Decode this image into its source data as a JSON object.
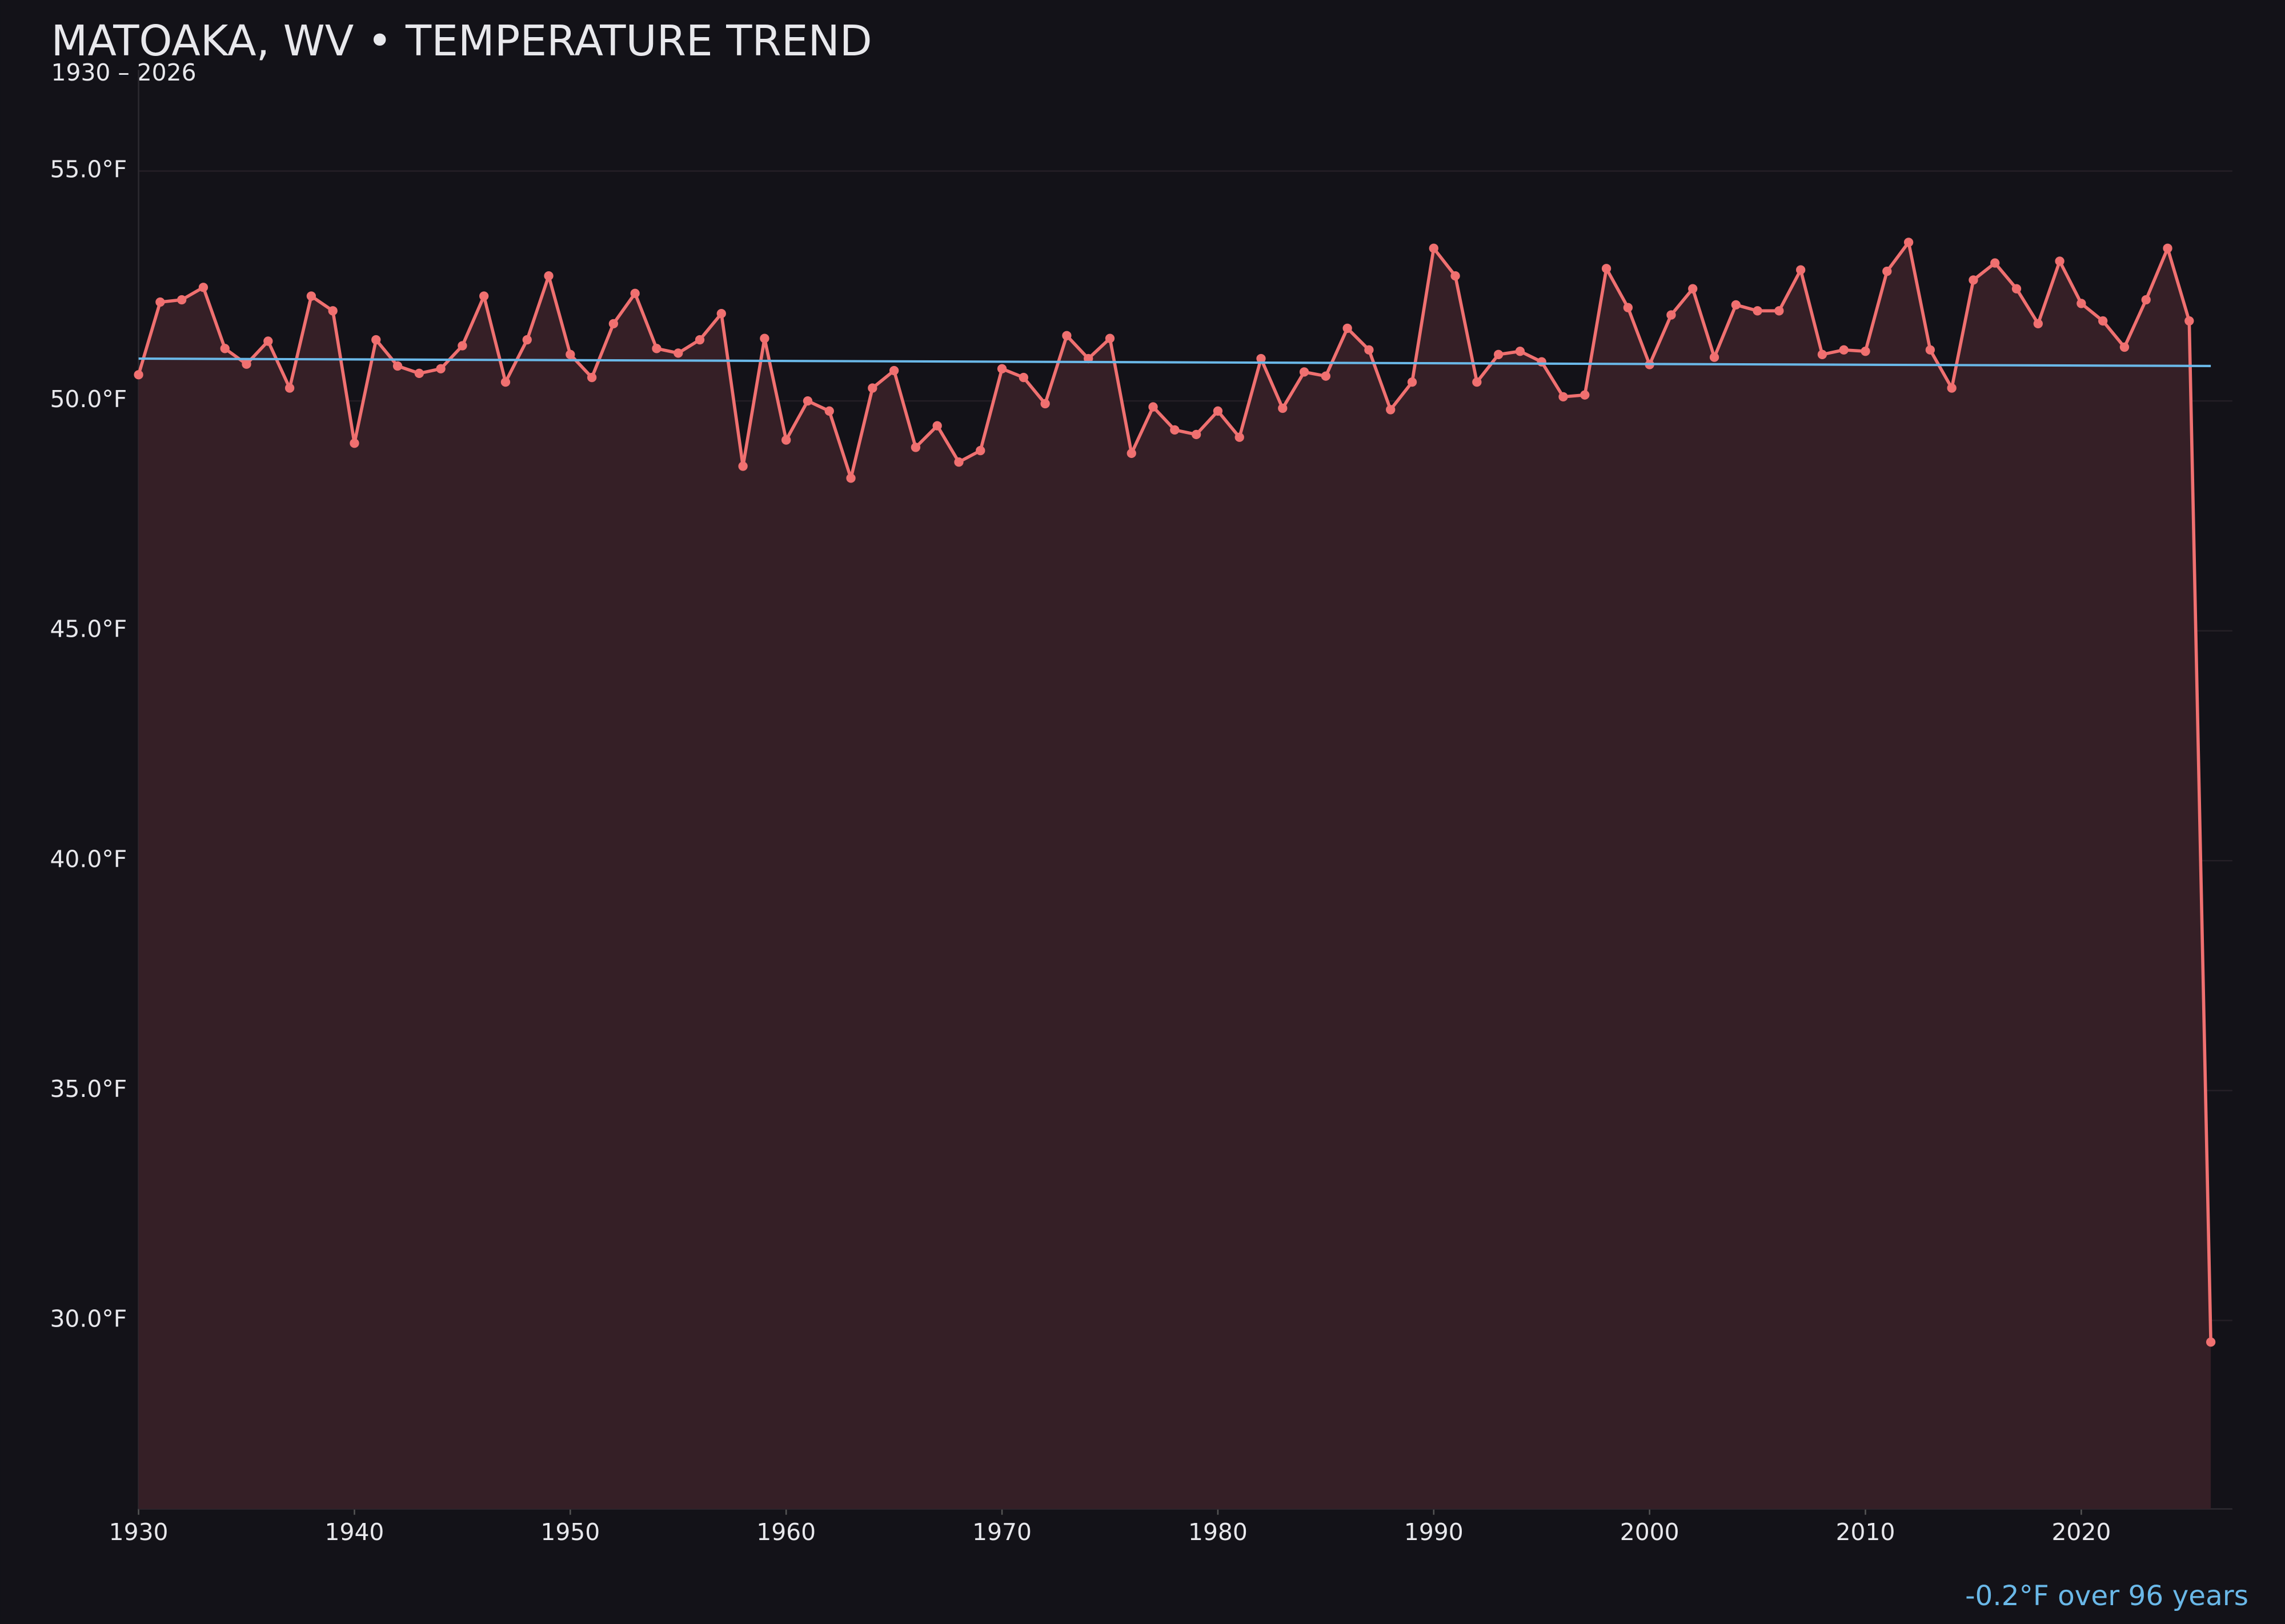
{
  "chart_data": {
    "type": "line",
    "title": "MATOAKA, WV • TEMPERATURE TREND",
    "subtitle": "1930 – 2026",
    "annotation": "-0.2°F over 96 years",
    "x": [
      1930,
      1931,
      1932,
      1933,
      1934,
      1935,
      1936,
      1937,
      1938,
      1939,
      1940,
      1941,
      1942,
      1943,
      1944,
      1945,
      1946,
      1947,
      1948,
      1949,
      1950,
      1951,
      1952,
      1953,
      1954,
      1955,
      1956,
      1957,
      1958,
      1959,
      1960,
      1961,
      1962,
      1963,
      1964,
      1965,
      1966,
      1967,
      1968,
      1969,
      1970,
      1971,
      1972,
      1973,
      1974,
      1975,
      1976,
      1977,
      1978,
      1979,
      1980,
      1981,
      1982,
      1983,
      1984,
      1985,
      1986,
      1987,
      1988,
      1989,
      1990,
      1991,
      1992,
      1993,
      1994,
      1995,
      1996,
      1997,
      1998,
      1999,
      2000,
      2001,
      2002,
      2003,
      2004,
      2005,
      2006,
      2007,
      2008,
      2009,
      2010,
      2011,
      2012,
      2013,
      2014,
      2015,
      2016,
      2017,
      2018,
      2019,
      2020,
      2021,
      2022,
      2023,
      2024,
      2025,
      2026
    ],
    "series": [
      {
        "color": "#f07070",
        "fill": "#351f26",
        "values": [
          50.57,
          52.15,
          52.2,
          52.47,
          51.14,
          50.8,
          51.3,
          50.28,
          52.28,
          51.96,
          49.08,
          51.33,
          50.76,
          50.6,
          50.7,
          51.2,
          52.28,
          50.41,
          51.33,
          52.72,
          51.01,
          50.51,
          51.68,
          52.34,
          51.14,
          51.04,
          51.33,
          51.9,
          48.58,
          51.36,
          49.15,
          50.0,
          49.78,
          48.32,
          50.28,
          50.66,
          48.99,
          49.46,
          48.67,
          48.92,
          50.7,
          50.51,
          49.94,
          51.42,
          50.92,
          51.36,
          48.86,
          49.87,
          49.37,
          49.27,
          49.78,
          49.21,
          50.92,
          49.84,
          50.63,
          50.54,
          51.58,
          51.11,
          49.81,
          50.41,
          53.32,
          52.72,
          50.41,
          51.01,
          51.08,
          50.85,
          50.09,
          50.13,
          52.88,
          52.03,
          50.79,
          51.87,
          52.44,
          50.95,
          52.09,
          51.96,
          51.96,
          52.85,
          51.01,
          51.11,
          51.08,
          52.82,
          53.45,
          51.11,
          50.28,
          52.63,
          53.0,
          52.44,
          51.68,
          53.04,
          52.12,
          51.74,
          51.17,
          52.2,
          53.32,
          51.74,
          29.53
        ]
      }
    ],
    "trend": {
      "x": [
        1930,
        2026
      ],
      "values": [
        50.92,
        50.76
      ],
      "color": "#6ab8e8"
    },
    "xlim": [
      1930,
      2027
    ],
    "ylim": [
      25.9,
      57.2
    ],
    "xticks": [
      1930,
      1940,
      1950,
      1960,
      1970,
      1980,
      1990,
      2000,
      2010,
      2020
    ],
    "yticks": [
      {
        "value": 30,
        "label": "30.0°F"
      },
      {
        "value": 35,
        "label": "35.0°F"
      },
      {
        "value": 40,
        "label": "40.0°F"
      },
      {
        "value": 45,
        "label": "45.0°F"
      },
      {
        "value": 50,
        "label": "50.0°F"
      },
      {
        "value": 55,
        "label": "55.0°F"
      }
    ],
    "grid": true
  }
}
